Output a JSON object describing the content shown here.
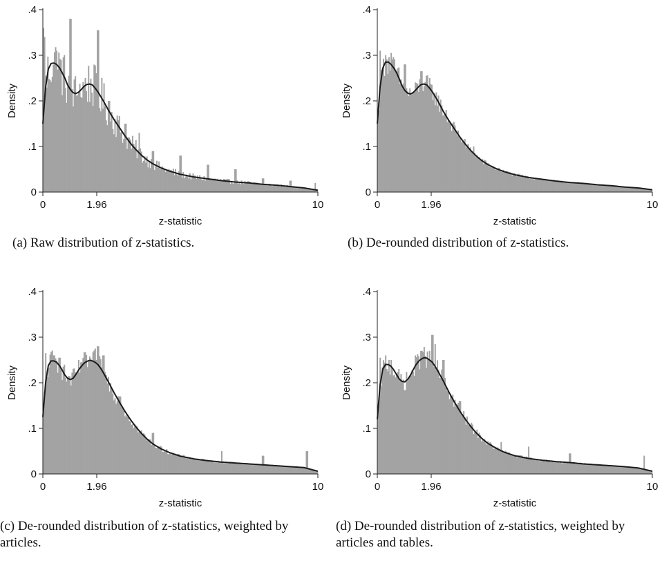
{
  "chart_data": [
    {
      "type": "bar",
      "caption": "(a) Raw distribution of z-statistics.",
      "xlabel": "z-statistic",
      "ylabel": "Density",
      "xlim": [
        0,
        10
      ],
      "ylim": [
        0,
        0.4
      ],
      "xticks": [
        {
          "v": 0,
          "label": "0"
        },
        {
          "v": 1.96,
          "label": "1.96"
        },
        {
          "v": 10,
          "label": "10"
        }
      ],
      "yticks": [
        {
          "v": 0,
          "label": "0"
        },
        {
          "v": 0.1,
          "label": ".1"
        },
        {
          "v": 0.2,
          "label": ".2"
        },
        {
          "v": 0.3,
          "label": ".3"
        },
        {
          "v": 0.4,
          "label": ".4"
        }
      ],
      "bar_color": "#a3a3a3",
      "line_color": "#1a1a1a",
      "bin_width": 0.04,
      "density_curve": {
        "x": [
          0,
          0.1,
          0.2,
          0.3,
          0.4,
          0.5,
          0.6,
          0.7,
          0.8,
          0.9,
          1.0,
          1.1,
          1.2,
          1.3,
          1.4,
          1.5,
          1.6,
          1.7,
          1.8,
          1.9,
          2.0,
          2.2,
          2.4,
          2.6,
          2.8,
          3.0,
          3.2,
          3.4,
          3.6,
          3.8,
          4.0,
          4.3,
          4.6,
          5.0,
          5.5,
          6.0,
          6.5,
          7.0,
          7.5,
          8.0,
          8.5,
          9.0,
          9.5,
          10.0
        ],
        "y": [
          0.15,
          0.23,
          0.27,
          0.282,
          0.283,
          0.28,
          0.273,
          0.262,
          0.25,
          0.235,
          0.225,
          0.218,
          0.216,
          0.219,
          0.225,
          0.232,
          0.236,
          0.237,
          0.235,
          0.228,
          0.22,
          0.2,
          0.178,
          0.158,
          0.14,
          0.122,
          0.106,
          0.092,
          0.08,
          0.07,
          0.062,
          0.053,
          0.046,
          0.039,
          0.033,
          0.029,
          0.025,
          0.022,
          0.02,
          0.017,
          0.015,
          0.012,
          0.009,
          0.004
        ]
      },
      "spikes": [
        {
          "x": 0.0,
          "y": 0.36
        },
        {
          "x": 0.05,
          "y": 0.34
        },
        {
          "x": 0.5,
          "y": 0.31
        },
        {
          "x": 0.6,
          "y": 0.27
        },
        {
          "x": 1.0,
          "y": 0.38
        },
        {
          "x": 1.3,
          "y": 0.22
        },
        {
          "x": 2.0,
          "y": 0.355
        },
        {
          "x": 2.4,
          "y": 0.2
        },
        {
          "x": 3.0,
          "y": 0.15
        },
        {
          "x": 3.5,
          "y": 0.13
        },
        {
          "x": 4.0,
          "y": 0.09
        },
        {
          "x": 5.0,
          "y": 0.08
        },
        {
          "x": 6.0,
          "y": 0.06
        },
        {
          "x": 7.0,
          "y": 0.05
        },
        {
          "x": 8.0,
          "y": 0.03
        },
        {
          "x": 9.0,
          "y": 0.025
        },
        {
          "x": 9.9,
          "y": 0.02
        }
      ]
    },
    {
      "type": "bar",
      "caption": "(b) De-rounded distribution of z-statistics.",
      "xlabel": "z-statistic",
      "ylabel": "Density",
      "xlim": [
        0,
        10
      ],
      "ylim": [
        0,
        0.4
      ],
      "xticks": [
        {
          "v": 0,
          "label": "0"
        },
        {
          "v": 1.96,
          "label": "1.96"
        },
        {
          "v": 10,
          "label": "10"
        }
      ],
      "yticks": [
        {
          "v": 0,
          "label": "0"
        },
        {
          "v": 0.1,
          "label": ".1"
        },
        {
          "v": 0.2,
          "label": ".2"
        },
        {
          "v": 0.3,
          "label": ".3"
        },
        {
          "v": 0.4,
          "label": ".4"
        }
      ],
      "bar_color": "#a3a3a3",
      "line_color": "#1a1a1a",
      "bin_width": 0.04,
      "density_curve": {
        "x": [
          0,
          0.1,
          0.2,
          0.3,
          0.4,
          0.5,
          0.6,
          0.7,
          0.8,
          0.9,
          1.0,
          1.1,
          1.2,
          1.3,
          1.4,
          1.5,
          1.6,
          1.7,
          1.8,
          1.9,
          2.0,
          2.2,
          2.4,
          2.6,
          2.8,
          3.0,
          3.2,
          3.4,
          3.6,
          3.8,
          4.0,
          4.3,
          4.6,
          5.0,
          5.5,
          6.0,
          6.5,
          7.0,
          7.5,
          8.0,
          8.5,
          9.0,
          9.5,
          10.0
        ],
        "y": [
          0.15,
          0.23,
          0.272,
          0.285,
          0.285,
          0.28,
          0.272,
          0.262,
          0.248,
          0.233,
          0.223,
          0.217,
          0.215,
          0.218,
          0.224,
          0.231,
          0.236,
          0.237,
          0.235,
          0.228,
          0.22,
          0.2,
          0.177,
          0.157,
          0.139,
          0.121,
          0.105,
          0.091,
          0.079,
          0.069,
          0.061,
          0.052,
          0.045,
          0.038,
          0.032,
          0.028,
          0.024,
          0.021,
          0.019,
          0.016,
          0.014,
          0.011,
          0.009,
          0.005
        ]
      },
      "spikes": [
        {
          "x": 0.1,
          "y": 0.31
        },
        {
          "x": 0.3,
          "y": 0.3
        },
        {
          "x": 0.5,
          "y": 0.305
        },
        {
          "x": 1.0,
          "y": 0.28
        },
        {
          "x": 1.6,
          "y": 0.265
        },
        {
          "x": 1.9,
          "y": 0.25
        },
        {
          "x": 2.5,
          "y": 0.18
        },
        {
          "x": 3.5,
          "y": 0.1
        }
      ]
    },
    {
      "type": "bar",
      "caption": "(c) De-rounded distribution of z-statistics, weighted by articles.",
      "xlabel": "z-statistic",
      "ylabel": "Density",
      "xlim": [
        0,
        10
      ],
      "ylim": [
        0,
        0.4
      ],
      "xticks": [
        {
          "v": 0,
          "label": "0"
        },
        {
          "v": 1.96,
          "label": "1.96"
        },
        {
          "v": 10,
          "label": "10"
        }
      ],
      "yticks": [
        {
          "v": 0,
          "label": "0"
        },
        {
          "v": 0.1,
          "label": ".1"
        },
        {
          "v": 0.2,
          "label": ".2"
        },
        {
          "v": 0.3,
          "label": ".3"
        },
        {
          "v": 0.4,
          "label": ".4"
        }
      ],
      "bar_color": "#a3a3a3",
      "line_color": "#1a1a1a",
      "bin_width": 0.04,
      "density_curve": {
        "x": [
          0,
          0.1,
          0.2,
          0.3,
          0.4,
          0.5,
          0.6,
          0.7,
          0.8,
          0.9,
          1.0,
          1.1,
          1.2,
          1.3,
          1.4,
          1.5,
          1.6,
          1.7,
          1.8,
          1.9,
          2.0,
          2.1,
          2.2,
          2.4,
          2.6,
          2.8,
          3.0,
          3.2,
          3.4,
          3.6,
          3.8,
          4.0,
          4.3,
          4.6,
          5.0,
          5.5,
          6.0,
          6.5,
          7.0,
          7.5,
          8.0,
          8.5,
          9.0,
          9.5,
          10.0
        ],
        "y": [
          0.125,
          0.2,
          0.238,
          0.248,
          0.248,
          0.245,
          0.238,
          0.228,
          0.217,
          0.21,
          0.207,
          0.21,
          0.218,
          0.228,
          0.236,
          0.243,
          0.247,
          0.249,
          0.248,
          0.245,
          0.24,
          0.232,
          0.222,
          0.2,
          0.177,
          0.156,
          0.136,
          0.118,
          0.102,
          0.088,
          0.076,
          0.066,
          0.055,
          0.047,
          0.039,
          0.033,
          0.029,
          0.026,
          0.024,
          0.022,
          0.02,
          0.018,
          0.016,
          0.014,
          0.006
        ]
      },
      "spikes": [
        {
          "x": 0.1,
          "y": 0.265
        },
        {
          "x": 0.4,
          "y": 0.26
        },
        {
          "x": 0.6,
          "y": 0.255
        },
        {
          "x": 1.4,
          "y": 0.245
        },
        {
          "x": 1.9,
          "y": 0.275
        },
        {
          "x": 2.0,
          "y": 0.28
        },
        {
          "x": 2.2,
          "y": 0.26
        },
        {
          "x": 2.8,
          "y": 0.17
        },
        {
          "x": 4.0,
          "y": 0.09
        },
        {
          "x": 6.5,
          "y": 0.05
        },
        {
          "x": 8.0,
          "y": 0.04
        },
        {
          "x": 9.6,
          "y": 0.05
        }
      ]
    },
    {
      "type": "bar",
      "caption": "(d) De-rounded distribution of z-statistics, weighted by articles and tables.",
      "xlabel": "z-statistic",
      "ylabel": "Density",
      "xlim": [
        0,
        10
      ],
      "ylim": [
        0,
        0.4
      ],
      "xticks": [
        {
          "v": 0,
          "label": "0"
        },
        {
          "v": 1.96,
          "label": "1.96"
        },
        {
          "v": 10,
          "label": "10"
        }
      ],
      "yticks": [
        {
          "v": 0,
          "label": "0"
        },
        {
          "v": 0.1,
          "label": ".1"
        },
        {
          "v": 0.2,
          "label": ".2"
        },
        {
          "v": 0.3,
          "label": ".3"
        },
        {
          "v": 0.4,
          "label": ".4"
        }
      ],
      "bar_color": "#a3a3a3",
      "line_color": "#1a1a1a",
      "bin_width": 0.04,
      "density_curve": {
        "x": [
          0,
          0.1,
          0.2,
          0.3,
          0.4,
          0.5,
          0.6,
          0.7,
          0.8,
          0.9,
          1.0,
          1.1,
          1.2,
          1.3,
          1.4,
          1.5,
          1.6,
          1.7,
          1.8,
          1.9,
          2.0,
          2.1,
          2.2,
          2.4,
          2.6,
          2.8,
          3.0,
          3.2,
          3.4,
          3.6,
          3.8,
          4.0,
          4.3,
          4.6,
          5.0,
          5.5,
          6.0,
          6.5,
          7.0,
          7.5,
          8.0,
          8.5,
          9.0,
          9.5,
          10.0
        ],
        "y": [
          0.12,
          0.195,
          0.23,
          0.24,
          0.24,
          0.236,
          0.228,
          0.218,
          0.208,
          0.203,
          0.202,
          0.207,
          0.216,
          0.228,
          0.239,
          0.247,
          0.252,
          0.255,
          0.254,
          0.25,
          0.245,
          0.236,
          0.226,
          0.204,
          0.18,
          0.158,
          0.138,
          0.12,
          0.104,
          0.09,
          0.078,
          0.068,
          0.057,
          0.048,
          0.04,
          0.034,
          0.03,
          0.027,
          0.025,
          0.022,
          0.02,
          0.018,
          0.016,
          0.013,
          0.006
        ]
      },
      "spikes": [
        {
          "x": 0.1,
          "y": 0.255
        },
        {
          "x": 0.3,
          "y": 0.26
        },
        {
          "x": 0.5,
          "y": 0.25
        },
        {
          "x": 1.6,
          "y": 0.27
        },
        {
          "x": 2.0,
          "y": 0.305
        },
        {
          "x": 2.1,
          "y": 0.285
        },
        {
          "x": 2.4,
          "y": 0.25
        },
        {
          "x": 3.0,
          "y": 0.16
        },
        {
          "x": 4.5,
          "y": 0.07
        },
        {
          "x": 5.5,
          "y": 0.06
        },
        {
          "x": 7.0,
          "y": 0.045
        },
        {
          "x": 9.7,
          "y": 0.04
        }
      ]
    }
  ]
}
